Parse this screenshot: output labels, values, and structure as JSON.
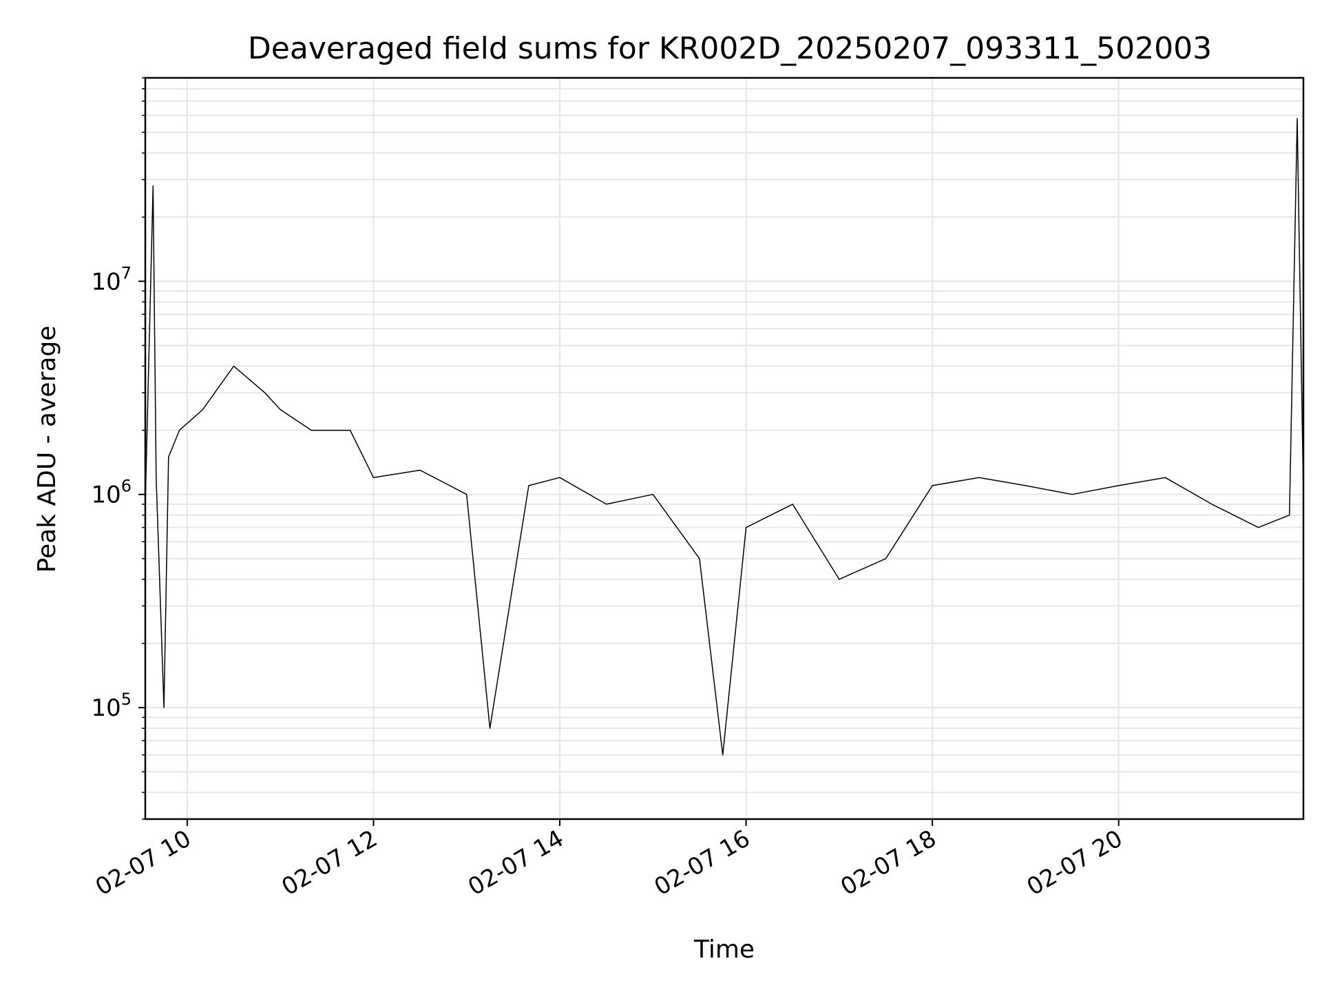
{
  "chart_data": {
    "type": "line",
    "title": "Deaveraged field sums for KR002D_20250207_093311_502003",
    "xlabel": "Time",
    "ylabel": "Peak ADU - average",
    "y_scale": "log",
    "xlim": [
      "2025-02-07 09:33",
      "2025-02-07 21:59"
    ],
    "ylim": [
      30000,
      90000000
    ],
    "grid": true,
    "line_color": "#000000",
    "x_ticks": [
      {
        "label": "02-07 10",
        "time": "2025-02-07 10:00"
      },
      {
        "label": "02-07 12",
        "time": "2025-02-07 12:00"
      },
      {
        "label": "02-07 14",
        "time": "2025-02-07 14:00"
      },
      {
        "label": "02-07 16",
        "time": "2025-02-07 16:00"
      },
      {
        "label": "02-07 18",
        "time": "2025-02-07 18:00"
      },
      {
        "label": "02-07 20",
        "time": "2025-02-07 20:00"
      }
    ],
    "y_ticks": [
      {
        "base": "10",
        "exp": "5",
        "value": 100000
      },
      {
        "base": "10",
        "exp": "6",
        "value": 1000000
      },
      {
        "base": "10",
        "exp": "7",
        "value": 10000000
      }
    ],
    "series": [
      {
        "x": [
          "2025-02-07 09:33",
          "2025-02-07 09:38",
          "2025-02-07 09:40",
          "2025-02-07 09:45",
          "2025-02-07 09:48",
          "2025-02-07 09:55",
          "2025-02-07 10:10",
          "2025-02-07 10:30",
          "2025-02-07 10:50",
          "2025-02-07 11:00",
          "2025-02-07 11:20",
          "2025-02-07 11:45",
          "2025-02-07 12:00",
          "2025-02-07 12:30",
          "2025-02-07 13:00",
          "2025-02-07 13:15",
          "2025-02-07 13:40",
          "2025-02-07 14:00",
          "2025-02-07 14:30",
          "2025-02-07 15:00",
          "2025-02-07 15:30",
          "2025-02-07 15:45",
          "2025-02-07 16:00",
          "2025-02-07 16:30",
          "2025-02-07 16:45",
          "2025-02-07 17:00",
          "2025-02-07 17:30",
          "2025-02-07 18:00",
          "2025-02-07 18:30",
          "2025-02-07 19:00",
          "2025-02-07 19:30",
          "2025-02-07 20:00",
          "2025-02-07 20:30",
          "2025-02-07 21:00",
          "2025-02-07 21:30",
          "2025-02-07 21:50",
          "2025-02-07 21:55",
          "2025-02-07 21:59"
        ],
        "y": [
          900000,
          28000000,
          1200000,
          100000,
          1500000,
          2000000,
          2500000,
          4000000,
          3000000,
          2500000,
          2000000,
          2000000,
          1200000,
          1300000,
          1000000,
          80000,
          1100000,
          1200000,
          900000,
          1000000,
          500000,
          60000,
          700000,
          900000,
          600000,
          400000,
          500000,
          1100000,
          1200000,
          1100000,
          1000000,
          1100000,
          1200000,
          900000,
          700000,
          800000,
          58000000,
          1000000
        ]
      }
    ]
  }
}
